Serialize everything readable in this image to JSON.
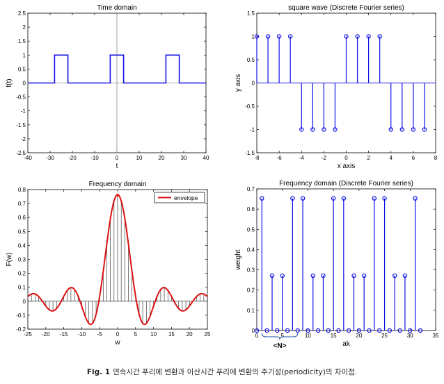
{
  "colors": {
    "series": "#1010e6",
    "envelope": "#dd1111",
    "axis_zero": "#888888",
    "stem_dark": "#222222"
  },
  "caption": {
    "label": "Fig. 1",
    "text": "연속시간 푸리에 변환과 이산시간 푸리에 변환의 주기성(periodicity)의 차이점."
  },
  "chart_data": [
    {
      "id": "time",
      "type": "line",
      "title": "Time domain",
      "xlabel": "t",
      "ylabel": "f(t)",
      "xlim": [
        -40,
        40
      ],
      "ylim": [
        -2.5,
        2.5
      ],
      "xticks": [
        -40,
        -30,
        -20,
        -10,
        0,
        10,
        20,
        30,
        40
      ],
      "yticks": [
        -2.5,
        -2,
        -1.5,
        -1,
        -0.5,
        0,
        0.5,
        1,
        1.5,
        2,
        2.5
      ],
      "grid": false,
      "zero_lines": true,
      "series": [
        {
          "x": [
            -40,
            -28,
            -28,
            -22,
            -22,
            -3,
            -3,
            3,
            3,
            22,
            22,
            28,
            28,
            40
          ],
          "y": [
            0,
            0,
            1,
            1,
            0,
            0,
            1,
            1,
            0,
            0,
            1,
            1,
            0,
            0
          ]
        }
      ]
    },
    {
      "id": "square",
      "type": "stem",
      "title": "square wave (Discrete Fourier series)",
      "xlabel": "x axis",
      "ylabel": "y axis",
      "xlim": [
        -8,
        8
      ],
      "ylim": [
        -1.5,
        1.5
      ],
      "xticks": [
        -8,
        -6,
        -4,
        -2,
        0,
        2,
        4,
        6,
        8
      ],
      "yticks": [
        -1.5,
        -1,
        -0.5,
        0,
        0.5,
        1,
        1.5
      ],
      "grid": false,
      "x": [
        -8,
        -7,
        -6,
        -5,
        -4,
        -3,
        -2,
        -1,
        0,
        1,
        2,
        3,
        4,
        5,
        6,
        7
      ],
      "y": [
        1,
        1,
        1,
        1,
        -1,
        -1,
        -1,
        -1,
        1,
        1,
        1,
        1,
        -1,
        -1,
        -1,
        -1
      ]
    },
    {
      "id": "freq",
      "type": "line",
      "title": "Frequency domain",
      "xlabel": "w",
      "ylabel": "F(w)",
      "xlim": [
        -25,
        25
      ],
      "ylim": [
        -0.2,
        0.8
      ],
      "xticks": [
        -25,
        -20,
        -15,
        -10,
        -5,
        0,
        5,
        10,
        15,
        20,
        25
      ],
      "yticks": [
        -0.2,
        -0.1,
        0,
        0.1,
        0.2,
        0.3,
        0.4,
        0.5,
        0.6,
        0.7,
        0.8
      ],
      "grid": false,
      "legend": "top-right",
      "series": [
        {
          "name": "envelope",
          "function": "sin(3w/5)/(w*pi/4)",
          "x_range": [
            -25,
            25
          ],
          "peak": 0.75
        }
      ],
      "stem_spacing": 1
    },
    {
      "id": "dfs",
      "type": "stem",
      "title": "Frequency domain (Discrete Fourier series)",
      "xlabel": "ak",
      "ylabel": "weight",
      "xlim": [
        0,
        35
      ],
      "ylim": [
        0,
        0.7
      ],
      "xticks": [
        0,
        5,
        10,
        15,
        20,
        25,
        30,
        35
      ],
      "yticks": [
        0,
        0.1,
        0.2,
        0.3,
        0.4,
        0.5,
        0.6,
        0.7
      ],
      "grid": false,
      "x": [
        0,
        1,
        2,
        3,
        4,
        5,
        6,
        7,
        8,
        9,
        10,
        11,
        12,
        13,
        14,
        15,
        16,
        17,
        18,
        19,
        20,
        21,
        22,
        23,
        24,
        25,
        26,
        27,
        28,
        29,
        30,
        31,
        32
      ],
      "y": [
        0,
        0.653,
        0,
        0.271,
        0,
        0.271,
        0,
        0.653,
        0,
        0.653,
        0,
        0.271,
        0,
        0.271,
        0,
        0.653,
        0,
        0.653,
        0,
        0.271,
        0,
        0.271,
        0,
        0.653,
        0,
        0.653,
        0,
        0.271,
        0,
        0.271,
        0,
        0.653,
        0
      ],
      "annotation": {
        "text": "<N>",
        "from": 1,
        "to": 8
      }
    }
  ]
}
